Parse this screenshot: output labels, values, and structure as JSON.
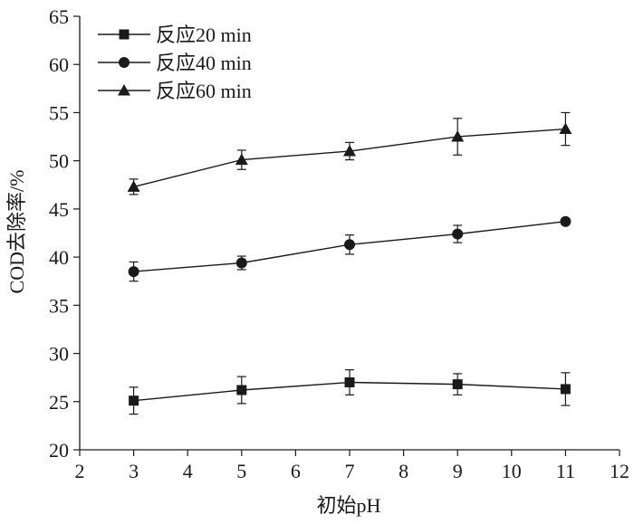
{
  "chart_data": {
    "type": "line",
    "title": "",
    "xlabel": "初始pH",
    "ylabel": "COD去除率/%",
    "xlim": [
      2,
      12
    ],
    "ylim": [
      20,
      65
    ],
    "xticks": [
      2,
      3,
      4,
      5,
      6,
      7,
      8,
      9,
      10,
      11,
      12
    ],
    "yticks": [
      20,
      25,
      30,
      35,
      40,
      45,
      50,
      55,
      60,
      65
    ],
    "x": [
      3,
      5,
      7,
      9,
      11
    ],
    "legend_position": "top-left",
    "series": [
      {
        "name": "反应20 min",
        "marker": "square",
        "values": [
          25.1,
          26.2,
          27.0,
          26.8,
          26.3
        ],
        "errors": [
          1.4,
          1.4,
          1.3,
          1.1,
          1.7
        ]
      },
      {
        "name": "反应40 min",
        "marker": "circle",
        "values": [
          38.5,
          39.4,
          41.3,
          42.4,
          43.7
        ],
        "errors": [
          1.0,
          0.7,
          1.0,
          0.9,
          0.0
        ]
      },
      {
        "name": "反应60 min",
        "marker": "triangle",
        "values": [
          47.3,
          50.1,
          51.0,
          52.5,
          53.3
        ],
        "errors": [
          0.8,
          1.0,
          0.9,
          1.9,
          1.7
        ]
      }
    ],
    "colors": {
      "line": "#1a1a1a",
      "marker": "#1a1a1a"
    }
  }
}
